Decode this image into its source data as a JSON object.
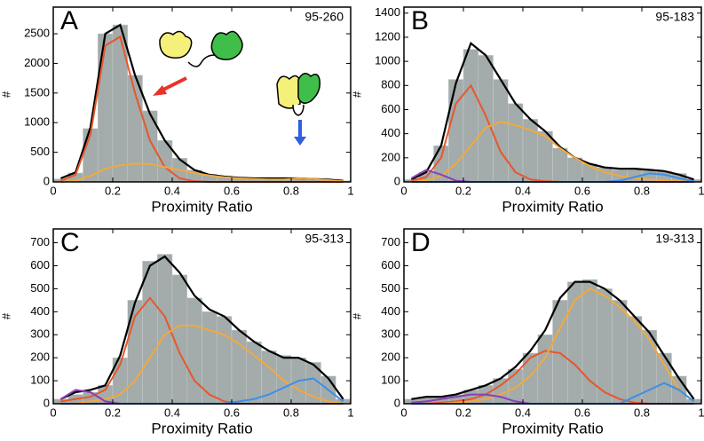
{
  "chart_data": [
    {
      "type": "histogram",
      "panel": "A",
      "label": "95-260",
      "xlabel": "Proximity Ratio",
      "ylabel": "#",
      "bins": [
        0,
        0.05,
        0.1,
        0.15,
        0.2,
        0.25,
        0.3,
        0.35,
        0.4,
        0.45,
        0.5,
        0.55,
        0.6,
        0.65,
        0.7,
        0.75,
        0.8,
        0.85,
        0.9,
        0.95,
        1
      ],
      "values": [
        50,
        150,
        900,
        2500,
        2650,
        1800,
        1200,
        700,
        400,
        200,
        130,
        100,
        80,
        70,
        60,
        60,
        70,
        50,
        40,
        20
      ],
      "color": "#a3abab",
      "x": [
        0.025,
        0.075,
        0.125,
        0.175,
        0.225,
        0.275,
        0.325,
        0.375,
        0.425,
        0.475,
        0.525,
        0.575,
        0.625,
        0.675,
        0.725,
        0.775,
        0.825,
        0.875,
        0.925,
        0.975
      ],
      "series": [
        {
          "color": "#000000",
          "values": [
            60,
            160,
            920,
            2500,
            2650,
            1800,
            1150,
            700,
            380,
            200,
            120,
            90,
            70,
            60,
            60,
            60,
            60,
            50,
            40,
            20
          ]
        },
        {
          "color": "#e8572a",
          "values": [
            20,
            120,
            800,
            2300,
            2450,
            1500,
            700,
            250,
            60,
            10,
            0,
            0,
            0,
            0,
            0,
            0,
            0,
            0,
            0,
            0
          ]
        },
        {
          "color": "#f2a93b",
          "values": [
            0,
            20,
            100,
            220,
            280,
            310,
            300,
            250,
            200,
            150,
            110,
            80,
            60,
            50,
            40,
            40,
            60,
            50,
            30,
            10
          ]
        }
      ],
      "xlim": [
        0,
        1
      ],
      "xticks": [
        0,
        0.2,
        0.4,
        0.6,
        0.8,
        1
      ],
      "ylim": [
        0,
        2950
      ],
      "yticks": [
        0,
        500,
        1000,
        1500,
        2000,
        2500
      ]
    },
    {
      "type": "histogram",
      "panel": "B",
      "label": "95-183",
      "xlabel": "Proximity Ratio",
      "ylabel": "#",
      "bins": [
        0,
        0.05,
        0.1,
        0.15,
        0.2,
        0.25,
        0.3,
        0.35,
        0.4,
        0.45,
        0.5,
        0.55,
        0.6,
        0.65,
        0.7,
        0.75,
        0.8,
        0.85,
        0.9,
        0.95,
        1
      ],
      "values": [
        20,
        80,
        300,
        850,
        1100,
        1050,
        850,
        650,
        520,
        420,
        280,
        200,
        150,
        120,
        100,
        100,
        100,
        90,
        70,
        20
      ],
      "color": "#a3abab",
      "x": [
        0.025,
        0.075,
        0.125,
        0.175,
        0.225,
        0.275,
        0.325,
        0.375,
        0.425,
        0.475,
        0.525,
        0.575,
        0.625,
        0.675,
        0.725,
        0.775,
        0.825,
        0.875,
        0.925,
        0.975
      ],
      "series": [
        {
          "color": "#000000",
          "values": [
            20,
            80,
            300,
            820,
            1150,
            1050,
            850,
            650,
            520,
            420,
            290,
            200,
            150,
            120,
            110,
            110,
            100,
            90,
            60,
            20
          ]
        },
        {
          "color": "#e8572a",
          "values": [
            10,
            40,
            200,
            650,
            800,
            550,
            250,
            80,
            20,
            5,
            0,
            0,
            0,
            0,
            0,
            0,
            0,
            0,
            0,
            0
          ]
        },
        {
          "color": "#f2a93b",
          "values": [
            0,
            10,
            50,
            150,
            300,
            450,
            500,
            470,
            430,
            380,
            280,
            200,
            130,
            80,
            50,
            30,
            20,
            10,
            5,
            0
          ]
        },
        {
          "color": "#8b3fb5",
          "values": [
            30,
            100,
            60,
            10,
            0,
            0,
            0,
            0,
            0,
            0,
            0,
            0,
            0,
            0,
            0,
            0,
            0,
            0,
            0,
            0
          ]
        },
        {
          "color": "#3b8fe8",
          "values": [
            0,
            0,
            0,
            0,
            0,
            0,
            0,
            0,
            0,
            0,
            0,
            0,
            0,
            0,
            10,
            40,
            70,
            60,
            30,
            5
          ]
        }
      ],
      "xlim": [
        0,
        1
      ],
      "xticks": [
        0,
        0.2,
        0.4,
        0.6,
        0.8,
        1
      ],
      "ylim": [
        0,
        1450
      ],
      "yticks": [
        0,
        200,
        400,
        600,
        800,
        1000,
        1200,
        1400
      ]
    },
    {
      "type": "histogram",
      "panel": "C",
      "label": "95-313",
      "xlabel": "Proximity Ratio",
      "ylabel": "#",
      "bins": [
        0,
        0.05,
        0.1,
        0.15,
        0.2,
        0.25,
        0.3,
        0.35,
        0.4,
        0.45,
        0.5,
        0.55,
        0.6,
        0.65,
        0.7,
        0.75,
        0.8,
        0.85,
        0.9,
        0.95,
        1
      ],
      "values": [
        20,
        40,
        50,
        80,
        200,
        450,
        620,
        650,
        560,
        460,
        400,
        380,
        320,
        270,
        230,
        210,
        200,
        180,
        120,
        20
      ],
      "color": "#a3abab",
      "x": [
        0.025,
        0.075,
        0.125,
        0.175,
        0.225,
        0.275,
        0.325,
        0.375,
        0.425,
        0.475,
        0.525,
        0.575,
        0.625,
        0.675,
        0.725,
        0.775,
        0.825,
        0.875,
        0.925,
        0.975
      ],
      "series": [
        {
          "color": "#000000",
          "values": [
            20,
            50,
            60,
            80,
            210,
            440,
            600,
            640,
            570,
            470,
            410,
            380,
            320,
            270,
            230,
            200,
            200,
            170,
            110,
            20
          ]
        },
        {
          "color": "#e8572a",
          "values": [
            10,
            20,
            30,
            60,
            170,
            380,
            460,
            380,
            220,
            100,
            40,
            10,
            0,
            0,
            0,
            0,
            0,
            0,
            0,
            0
          ]
        },
        {
          "color": "#f2a93b",
          "values": [
            0,
            0,
            10,
            20,
            40,
            100,
            200,
            300,
            340,
            340,
            320,
            300,
            260,
            210,
            160,
            100,
            60,
            30,
            10,
            0
          ]
        },
        {
          "color": "#8b3fb5",
          "values": [
            20,
            60,
            50,
            10,
            0,
            0,
            0,
            0,
            0,
            0,
            0,
            0,
            0,
            0,
            0,
            0,
            0,
            0,
            0,
            0
          ]
        },
        {
          "color": "#3b8fe8",
          "values": [
            0,
            0,
            0,
            0,
            0,
            0,
            0,
            0,
            0,
            0,
            0,
            0,
            10,
            20,
            40,
            70,
            100,
            110,
            60,
            10
          ]
        }
      ],
      "xlim": [
        0,
        1
      ],
      "xticks": [
        0,
        0.2,
        0.4,
        0.6,
        0.8,
        1
      ],
      "ylim": [
        0,
        760
      ],
      "yticks": [
        0,
        100,
        200,
        300,
        400,
        500,
        600,
        700
      ]
    },
    {
      "type": "histogram",
      "panel": "D",
      "label": "19-313",
      "xlabel": "Proximity Ratio",
      "ylabel": "#",
      "bins": [
        0,
        0.05,
        0.1,
        0.15,
        0.2,
        0.25,
        0.3,
        0.35,
        0.4,
        0.45,
        0.5,
        0.55,
        0.6,
        0.65,
        0.7,
        0.75,
        0.8,
        0.85,
        0.9,
        0.95,
        1
      ],
      "values": [
        20,
        30,
        30,
        40,
        60,
        80,
        110,
        150,
        220,
        300,
        450,
        530,
        540,
        500,
        450,
        380,
        320,
        220,
        120,
        20
      ],
      "color": "#a3abab",
      "x": [
        0.025,
        0.075,
        0.125,
        0.175,
        0.225,
        0.275,
        0.325,
        0.375,
        0.425,
        0.475,
        0.525,
        0.575,
        0.625,
        0.675,
        0.725,
        0.775,
        0.825,
        0.875,
        0.925,
        0.975
      ],
      "series": [
        {
          "color": "#000000",
          "values": [
            20,
            30,
            30,
            40,
            60,
            80,
            110,
            160,
            230,
            320,
            460,
            530,
            530,
            500,
            450,
            380,
            310,
            210,
            110,
            20
          ]
        },
        {
          "color": "#e8572a",
          "values": [
            0,
            0,
            5,
            10,
            20,
            40,
            80,
            130,
            200,
            230,
            220,
            170,
            100,
            50,
            20,
            5,
            0,
            0,
            0,
            0
          ]
        },
        {
          "color": "#f2a93b",
          "values": [
            0,
            0,
            0,
            5,
            10,
            20,
            40,
            70,
            120,
            200,
            330,
            450,
            500,
            470,
            420,
            360,
            280,
            170,
            60,
            10
          ]
        },
        {
          "color": "#8b3fb5",
          "values": [
            5,
            10,
            20,
            30,
            40,
            40,
            30,
            10,
            0,
            0,
            0,
            0,
            0,
            0,
            0,
            0,
            0,
            0,
            0,
            0
          ]
        },
        {
          "color": "#3b8fe8",
          "values": [
            0,
            0,
            0,
            0,
            0,
            0,
            0,
            0,
            0,
            0,
            0,
            0,
            0,
            0,
            0,
            30,
            60,
            90,
            60,
            10
          ]
        }
      ],
      "xlim": [
        0,
        1
      ],
      "xticks": [
        0,
        0.2,
        0.4,
        0.6,
        0.8,
        1
      ],
      "ylim": [
        0,
        760
      ],
      "yticks": [
        0,
        100,
        200,
        300,
        400,
        500,
        600,
        700
      ]
    }
  ]
}
